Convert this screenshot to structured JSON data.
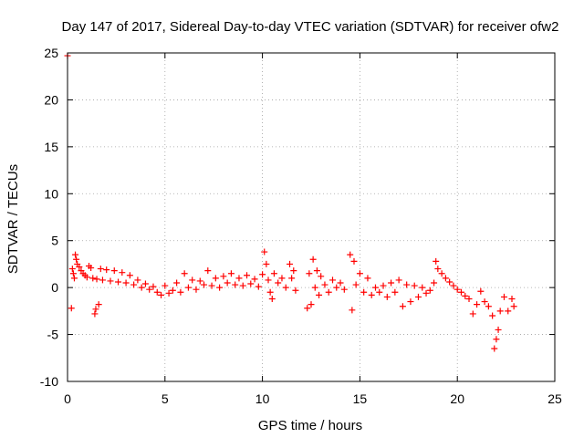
{
  "chart_data": {
    "type": "scatter",
    "title": "Day 147 of 2017, Sidereal Day-to-day VTEC variation (SDTVAR) for receiver ofw2",
    "xlabel": "GPS time / hours",
    "ylabel": "SDTVAR / TECUs",
    "xlim": [
      0,
      25
    ],
    "ylim": [
      -10,
      25
    ],
    "xticks": [
      0,
      5,
      10,
      15,
      20,
      25
    ],
    "yticks": [
      -10,
      -5,
      0,
      5,
      10,
      15,
      20,
      25
    ],
    "xtick_labels": [
      "0",
      "5",
      "10",
      "15",
      "20",
      "25"
    ],
    "ytick_labels": [
      "-10",
      "-5",
      "0",
      "5",
      "10",
      "15",
      "20",
      "25"
    ],
    "grid": true,
    "marker": "plus",
    "color": "#ff0000",
    "series": [
      {
        "name": "SDTVAR",
        "points": [
          [
            0.0,
            24.7
          ],
          [
            0.2,
            -2.2
          ],
          [
            0.25,
            2.0
          ],
          [
            0.3,
            1.5
          ],
          [
            0.35,
            1.0
          ],
          [
            0.4,
            3.5
          ],
          [
            0.45,
            3.0
          ],
          [
            0.5,
            2.5
          ],
          [
            0.6,
            2.2
          ],
          [
            0.7,
            1.8
          ],
          [
            0.8,
            1.5
          ],
          [
            0.9,
            1.3
          ],
          [
            1.0,
            1.1
          ],
          [
            1.1,
            2.3
          ],
          [
            1.2,
            2.1
          ],
          [
            1.3,
            1.0
          ],
          [
            1.4,
            -2.8
          ],
          [
            1.45,
            -2.3
          ],
          [
            1.5,
            0.9
          ],
          [
            1.6,
            -1.8
          ],
          [
            1.7,
            2.0
          ],
          [
            1.8,
            0.8
          ],
          [
            2.0,
            1.9
          ],
          [
            2.2,
            0.7
          ],
          [
            2.4,
            1.8
          ],
          [
            2.6,
            0.6
          ],
          [
            2.8,
            1.6
          ],
          [
            3.0,
            0.5
          ],
          [
            3.2,
            1.3
          ],
          [
            3.4,
            0.3
          ],
          [
            3.6,
            0.8
          ],
          [
            3.8,
            0.0
          ],
          [
            4.0,
            0.4
          ],
          [
            4.2,
            -0.2
          ],
          [
            4.4,
            0.1
          ],
          [
            4.6,
            -0.5
          ],
          [
            4.8,
            -0.8
          ],
          [
            5.0,
            0.2
          ],
          [
            5.2,
            -0.6
          ],
          [
            5.4,
            -0.3
          ],
          [
            5.6,
            0.5
          ],
          [
            5.8,
            -0.5
          ],
          [
            6.0,
            1.5
          ],
          [
            6.2,
            0.0
          ],
          [
            6.4,
            0.8
          ],
          [
            6.6,
            -0.2
          ],
          [
            6.8,
            0.7
          ],
          [
            7.0,
            0.3
          ],
          [
            7.2,
            1.8
          ],
          [
            7.4,
            0.2
          ],
          [
            7.6,
            1.0
          ],
          [
            7.8,
            0.0
          ],
          [
            8.0,
            1.2
          ],
          [
            8.2,
            0.5
          ],
          [
            8.4,
            1.5
          ],
          [
            8.6,
            0.3
          ],
          [
            8.8,
            1.0
          ],
          [
            9.0,
            0.2
          ],
          [
            9.2,
            1.3
          ],
          [
            9.4,
            0.4
          ],
          [
            9.6,
            0.9
          ],
          [
            9.8,
            0.1
          ],
          [
            10.0,
            1.4
          ],
          [
            10.1,
            3.8
          ],
          [
            10.2,
            2.5
          ],
          [
            10.3,
            0.8
          ],
          [
            10.4,
            -0.5
          ],
          [
            10.5,
            -1.2
          ],
          [
            10.6,
            1.5
          ],
          [
            10.8,
            0.5
          ],
          [
            11.0,
            1.0
          ],
          [
            11.2,
            0.0
          ],
          [
            11.4,
            2.5
          ],
          [
            11.5,
            1.0
          ],
          [
            11.6,
            1.8
          ],
          [
            11.7,
            -0.3
          ],
          [
            12.3,
            -2.2
          ],
          [
            12.4,
            1.5
          ],
          [
            12.5,
            -1.8
          ],
          [
            12.6,
            3.0
          ],
          [
            12.7,
            0.0
          ],
          [
            12.8,
            1.8
          ],
          [
            12.9,
            -0.8
          ],
          [
            13.0,
            1.2
          ],
          [
            13.2,
            0.3
          ],
          [
            13.4,
            -0.5
          ],
          [
            13.6,
            0.8
          ],
          [
            13.8,
            0.0
          ],
          [
            14.0,
            0.5
          ],
          [
            14.2,
            -0.2
          ],
          [
            14.5,
            3.5
          ],
          [
            14.6,
            -2.4
          ],
          [
            14.7,
            2.8
          ],
          [
            14.8,
            0.3
          ],
          [
            15.0,
            1.5
          ],
          [
            15.2,
            -0.5
          ],
          [
            15.4,
            1.0
          ],
          [
            15.6,
            -0.8
          ],
          [
            15.8,
            0.0
          ],
          [
            16.0,
            -0.5
          ],
          [
            16.2,
            0.2
          ],
          [
            16.4,
            -1.0
          ],
          [
            16.6,
            0.5
          ],
          [
            16.8,
            -0.5
          ],
          [
            17.0,
            0.8
          ],
          [
            17.2,
            -2.0
          ],
          [
            17.4,
            0.3
          ],
          [
            17.6,
            -1.5
          ],
          [
            17.8,
            0.2
          ],
          [
            18.0,
            -1.0
          ],
          [
            18.2,
            0.0
          ],
          [
            18.4,
            -0.6
          ],
          [
            18.6,
            -0.3
          ],
          [
            18.8,
            0.5
          ],
          [
            18.9,
            2.8
          ],
          [
            19.0,
            2.0
          ],
          [
            19.2,
            1.5
          ],
          [
            19.4,
            1.0
          ],
          [
            19.6,
            0.6
          ],
          [
            19.8,
            0.2
          ],
          [
            20.0,
            -0.2
          ],
          [
            20.2,
            -0.5
          ],
          [
            20.4,
            -0.9
          ],
          [
            20.6,
            -1.2
          ],
          [
            20.8,
            -2.8
          ],
          [
            21.0,
            -1.8
          ],
          [
            21.2,
            -0.4
          ],
          [
            21.4,
            -1.5
          ],
          [
            21.6,
            -2.0
          ],
          [
            21.8,
            -3.0
          ],
          [
            21.9,
            -6.5
          ],
          [
            22.0,
            -5.5
          ],
          [
            22.1,
            -4.5
          ],
          [
            22.2,
            -2.5
          ],
          [
            22.4,
            -1.0
          ],
          [
            22.6,
            -2.5
          ],
          [
            22.8,
            -1.2
          ],
          [
            22.9,
            -2.0
          ]
        ]
      }
    ]
  }
}
